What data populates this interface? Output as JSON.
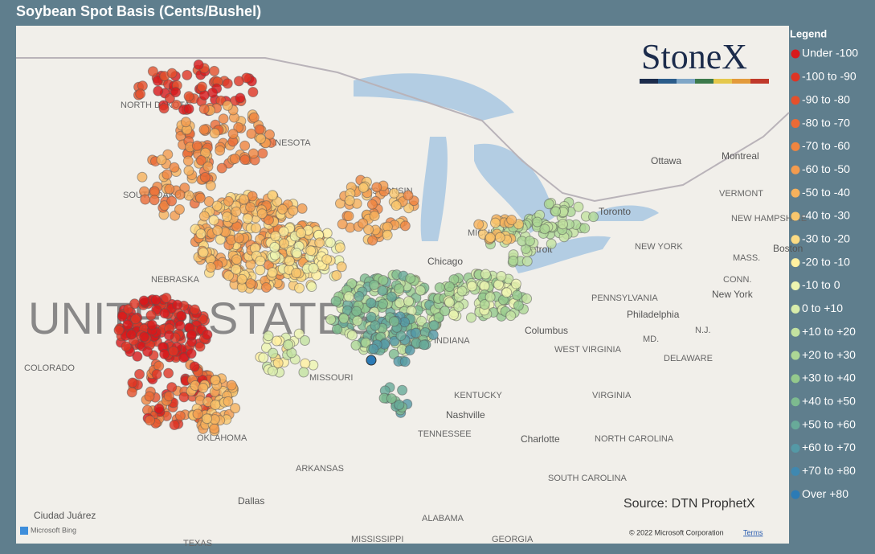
{
  "header": {
    "title": "Soybean Spot Basis (Cents/Bushel)"
  },
  "legend": {
    "title": "Legend",
    "items": [
      {
        "label": "Under -100",
        "color": "#d7191c"
      },
      {
        "label": "-100 to -90",
        "color": "#de3424"
      },
      {
        "label": "-90 to -80",
        "color": "#e4502c"
      },
      {
        "label": "-80 to -70",
        "color": "#ea6a36"
      },
      {
        "label": "-70 to -60",
        "color": "#ef8540"
      },
      {
        "label": "-60 to -50",
        "color": "#f39b4e"
      },
      {
        "label": "-50 to -40",
        "color": "#f6b15c"
      },
      {
        "label": "-40 to -30",
        "color": "#f9c66d"
      },
      {
        "label": "-30 to -20",
        "color": "#fcdb83"
      },
      {
        "label": "-20 to -10",
        "color": "#fff0a0"
      },
      {
        "label": "-10 to 0",
        "color": "#eef5b0"
      },
      {
        "label": "0 to +10",
        "color": "#d8ecaa"
      },
      {
        "label": "+10 to +20",
        "color": "#c3e2a0"
      },
      {
        "label": "+20 to +30",
        "color": "#add795"
      },
      {
        "label": "+30 to +40",
        "color": "#94c98c"
      },
      {
        "label": "+40 to +50",
        "color": "#7dba8f"
      },
      {
        "label": "+50 to +60",
        "color": "#68aa99"
      },
      {
        "label": "+60 to +70",
        "color": "#5499a6"
      },
      {
        "label": "+70 to +80",
        "color": "#3f88b0"
      },
      {
        "label": "Over +80",
        "color": "#2c7bb6"
      }
    ]
  },
  "logo": "StoneX",
  "map": {
    "country": "UNITED STATES",
    "labels": [
      "NORTH DAKOTA",
      "MINNESOTA",
      "SOUTH DAKOTA",
      "WISCONSIN",
      "NEBRASKA",
      "COLORADO",
      "MISSOURI",
      "OKLAHOMA",
      "ARKANSAS",
      "KENTUCKY",
      "TENNESSEE",
      "MICHIGAN",
      "NEW YORK",
      "PENNSYLVANIA",
      "WEST VIRGINIA",
      "VIRGINIA",
      "NORTH CAROLINA",
      "SOUTH CAROLINA",
      "ALABAMA",
      "MISSISSIPPI",
      "GEORGIA",
      "TEXAS",
      "VERMONT",
      "NEW HAMPSHIRE",
      "MASS.",
      "CONN.",
      "N.J.",
      "MD.",
      "DELAWARE",
      "INDIANA"
    ],
    "cities": [
      "Chicago",
      "Columbus",
      "Nashville",
      "Charlotte",
      "Dallas",
      "Philadelphia",
      "New York",
      "Toronto",
      "Ottawa",
      "Montreal",
      "Detroit",
      "Boston",
      "Ciudad Juárez"
    ]
  },
  "source": "Source: DTN ProphetX",
  "attribution": {
    "bing": "Microsoft Bing",
    "copyright": "© 2022 Microsoft Corporation",
    "terms": "Terms"
  }
}
